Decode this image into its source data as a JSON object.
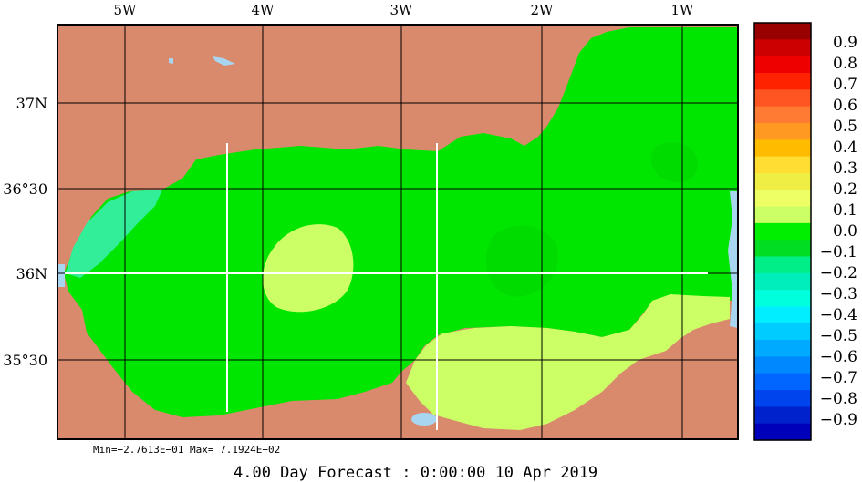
{
  "map": {
    "top_axis_labels": [
      "5W",
      "4W",
      "3W",
      "2W",
      "1W"
    ],
    "left_axis_labels": [
      "37N",
      "36°30",
      "36N",
      "35°30"
    ],
    "colors": {
      "land": "#d98a6c",
      "water_blue": "#a8d6f0",
      "sea_green": "#00e600",
      "sea_green_dark": "#00d800",
      "sea_yellowgreen": "#ccff66",
      "sea_teal": "#33ee99",
      "grid": "#000000",
      "transect": "#ffffff"
    }
  },
  "colorbar": {
    "labels": [
      "0.9",
      "0.8",
      "0.7",
      "0.6",
      "0.5",
      "0.4",
      "0.3",
      "0.2",
      "0.1",
      "0.0",
      "−0.1",
      "−0.2",
      "−0.3",
      "−0.4",
      "−0.5",
      "−0.6",
      "−0.7",
      "−0.8",
      "−0.9"
    ],
    "colors": [
      "#990000",
      "#cc0000",
      "#ee0000",
      "#ff2200",
      "#ff5522",
      "#ff7a33",
      "#ff9922",
      "#ffbb00",
      "#ffdd33",
      "#eeee44",
      "#eeff66",
      "#ccff66",
      "#00ee00",
      "#00dd22",
      "#00ee88",
      "#00eebb",
      "#00ffdd",
      "#00eeff",
      "#00ccff",
      "#00aaff",
      "#0088ff",
      "#0066ff",
      "#0044ee",
      "#0022cc",
      "#0000bb"
    ]
  },
  "footer": {
    "minmax": "Min=−2.7613E−01  Max= 7.1924E−02",
    "forecast": "4.00 Day Forecast :  0:00:00  10 Apr 2019"
  }
}
